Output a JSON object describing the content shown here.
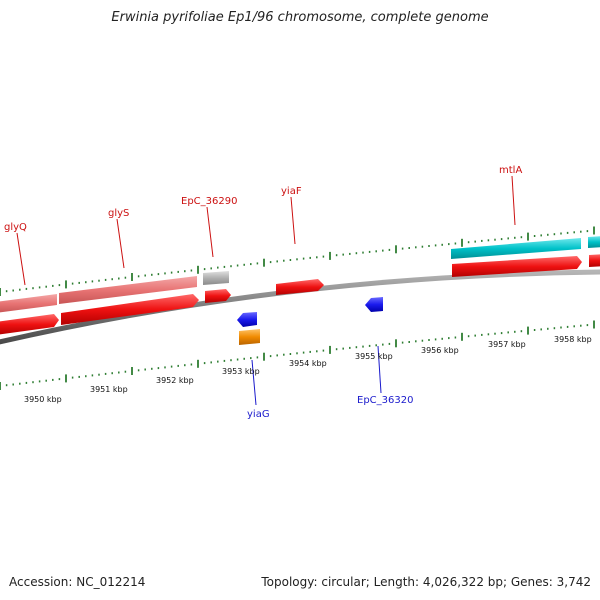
{
  "header": {
    "title": "Erwinia pyrifoliae Ep1/96 chromosome, complete genome"
  },
  "footer": {
    "accession": "Accession: NC_012214",
    "summary": "Topology: circular; Length: 4,026,322 bp; Genes: 3,742"
  },
  "colors": {
    "backbone": "#7a7a7a",
    "tick": "#2e7d32",
    "cds": "#ee1111",
    "rrna": "#00c2c9",
    "trna": "#e87474",
    "misc": "#b0b0b0",
    "minus_cds": "#1a1aee",
    "minus_other": "#f08a00",
    "label_plus": "#cc1111",
    "label_minus": "#1a1acc"
  },
  "scale_labels": [
    "3950 kbp",
    "3951 kbp",
    "3952 kbp",
    "3953 kbp",
    "3954 kbp",
    "3955 kbp",
    "3956 kbp",
    "3957 kbp",
    "3958 kbp"
  ],
  "gene_labels": {
    "plus": [
      "glyQ",
      "glyS",
      "EpC_36290",
      "yiaF",
      "mtlA"
    ],
    "minus": [
      "yiaG",
      "EpC_36320"
    ]
  }
}
